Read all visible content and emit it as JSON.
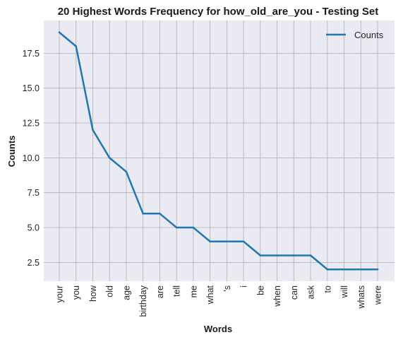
{
  "chart_data": {
    "type": "line",
    "title": "20 Highest Words Frequency for how_old_are_you - Testing Set",
    "xlabel": "Words",
    "ylabel": "Counts",
    "categories": [
      "your",
      "you",
      "how",
      "old",
      "age",
      "birthday",
      "are",
      "tell",
      "me",
      "what",
      "'s",
      "i",
      "be",
      "when",
      "can",
      "ask",
      "to",
      "will",
      "whats",
      "were"
    ],
    "series": [
      {
        "name": "Counts",
        "values": [
          19,
          18,
          12,
          10,
          9,
          6,
          6,
          5,
          5,
          4,
          4,
          4,
          3,
          3,
          3,
          3,
          2,
          2,
          2,
          2
        ],
        "color": "#1f77b4"
      }
    ],
    "yticks": [
      2.5,
      5.0,
      7.5,
      10.0,
      12.5,
      15.0,
      17.5
    ],
    "ytick_labels": [
      "2.5",
      "5.0",
      "7.5",
      "10.0",
      "12.5",
      "15.0",
      "17.5"
    ],
    "ylim": [
      1.15,
      19.85
    ],
    "grid": true,
    "legend_position": "top-right",
    "background_color": "#eaeaf2",
    "grid_color": "#b0b0b0"
  }
}
